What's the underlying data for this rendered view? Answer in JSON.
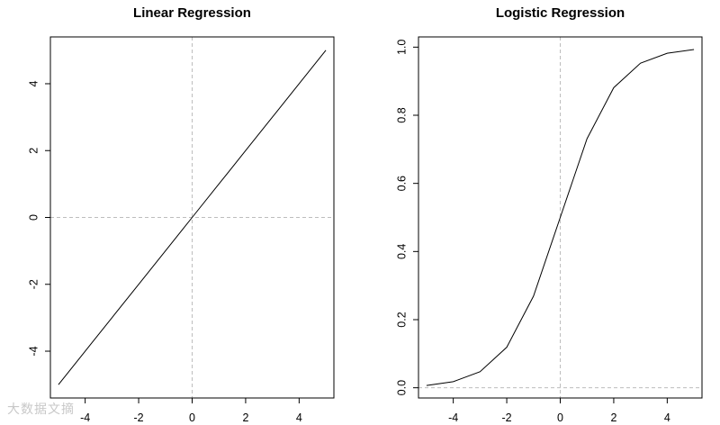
{
  "watermark": "大数据文摘",
  "chart_data": [
    {
      "type": "line",
      "title": "Linear Regression",
      "xlabel": "",
      "ylabel": "",
      "xlim": [
        -5.3,
        5.3
      ],
      "ylim": [
        -5.4,
        5.4
      ],
      "xticks": [
        -4,
        -2,
        0,
        2,
        4
      ],
      "yticks": [
        -4,
        -2,
        0,
        2,
        4
      ],
      "ref_lines": {
        "x": 0,
        "y": 0
      },
      "grid": false,
      "series": [
        {
          "x": [
            -5,
            -4,
            -3,
            -2,
            -1,
            0,
            1,
            2,
            3,
            4,
            5
          ],
          "y": [
            -5,
            -4,
            -3,
            -2,
            -1,
            0,
            1,
            2,
            3,
            4,
            5
          ]
        }
      ]
    },
    {
      "type": "line",
      "title": "Logistic Regression",
      "xlabel": "",
      "ylabel": "",
      "xlim": [
        -5.3,
        5.3
      ],
      "ylim": [
        -0.03,
        1.03
      ],
      "xticks": [
        -4,
        -2,
        0,
        2,
        4
      ],
      "yticks": [
        0.0,
        0.2,
        0.4,
        0.6,
        0.8,
        1.0
      ],
      "ytick_labels": [
        "0.0",
        "0.2",
        "0.4",
        "0.6",
        "0.8",
        "1.0"
      ],
      "ref_lines": {
        "x": 0,
        "y": 0
      },
      "grid": false,
      "series": [
        {
          "x": [
            -5,
            -4,
            -3,
            -2,
            -1,
            0,
            1,
            2,
            3,
            4,
            5
          ],
          "y": [
            0.0067,
            0.018,
            0.047,
            0.119,
            0.269,
            0.5,
            0.731,
            0.881,
            0.953,
            0.982,
            0.993
          ]
        }
      ]
    }
  ]
}
